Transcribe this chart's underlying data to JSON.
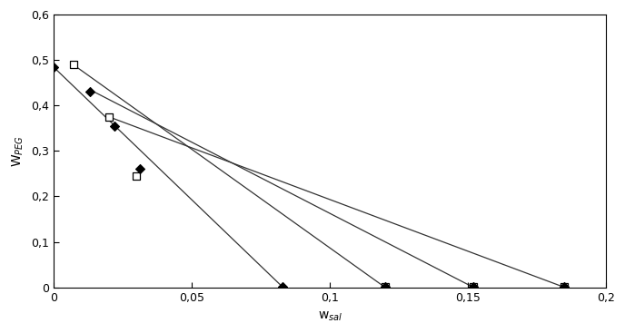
{
  "xlabel": "w_sal",
  "ylabel": "W_PEG",
  "xlim": [
    0,
    0.2
  ],
  "ylim": [
    0,
    0.6
  ],
  "xticks": [
    0,
    0.05,
    0.1,
    0.15,
    0.2
  ],
  "yticks": [
    0,
    0.1,
    0.2,
    0.3,
    0.4,
    0.5,
    0.6
  ],
  "xtick_labels": [
    "0",
    "0,05",
    "0,1",
    "0,15",
    "0,2"
  ],
  "ytick_labels": [
    "0",
    "0,1",
    "0,2",
    "0,3",
    "0,4",
    "0,5",
    "0,6"
  ],
  "lines": [
    {
      "x": [
        0.0,
        0.083
      ],
      "y": [
        0.484,
        0.0
      ]
    },
    {
      "x": [
        0.007,
        0.12
      ],
      "y": [
        0.49,
        0.0
      ]
    },
    {
      "x": [
        0.013,
        0.152
      ],
      "y": [
        0.435,
        0.0
      ]
    },
    {
      "x": [
        0.02,
        0.185
      ],
      "y": [
        0.375,
        0.0
      ]
    }
  ],
  "filled_diamonds": {
    "x": [
      0.0,
      0.013,
      0.022,
      0.031,
      0.083,
      0.12,
      0.152,
      0.185
    ],
    "y": [
      0.484,
      0.43,
      0.355,
      0.261,
      0.001,
      0.001,
      0.001,
      0.001
    ]
  },
  "open_squares": {
    "x": [
      0.007,
      0.02,
      0.03,
      0.12,
      0.152,
      0.185
    ],
    "y": [
      0.49,
      0.375,
      0.245,
      0.001,
      0.001,
      0.001
    ]
  },
  "line_color": "#333333",
  "line_lw": 0.9,
  "bg_color": "#ffffff"
}
